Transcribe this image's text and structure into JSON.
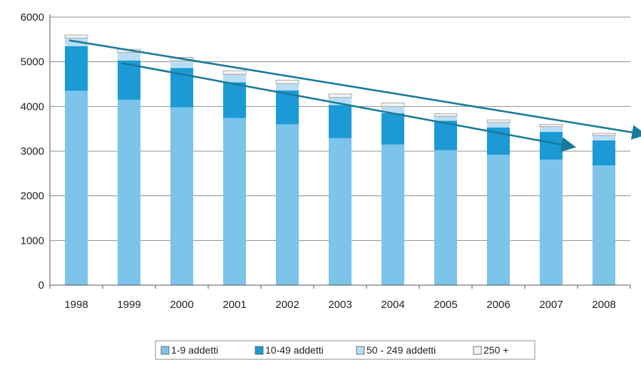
{
  "chart_data": {
    "type": "bar",
    "stacked": true,
    "categories": [
      "1998",
      "1999",
      "2000",
      "2001",
      "2002",
      "2003",
      "2004",
      "2005",
      "2006",
      "2007",
      "2008"
    ],
    "series": [
      {
        "name": "1-9 addetti",
        "color": "#7cc4ea",
        "values": [
          4350,
          4150,
          3980,
          3740,
          3600,
          3290,
          3150,
          3020,
          2920,
          2810,
          2680
        ]
      },
      {
        "name": "10-49 addetti",
        "color": "#1b9ad6",
        "values": [
          1000,
          880,
          880,
          800,
          760,
          740,
          700,
          660,
          610,
          620,
          560
        ]
      },
      {
        "name": "50 - 249 addetti",
        "color": "#b9def4",
        "values": [
          180,
          180,
          160,
          180,
          150,
          170,
          150,
          100,
          110,
          120,
          110
        ]
      },
      {
        "name": "250 +",
        "color": "#f2f2f2",
        "values": [
          70,
          70,
          80,
          80,
          80,
          80,
          80,
          60,
          60,
          50,
          50
        ]
      }
    ],
    "y_ticks": [
      "0",
      "1000",
      "2000",
      "3000",
      "4000",
      "5000",
      "6000"
    ],
    "ylim": [
      0,
      6000
    ],
    "grid": true,
    "legend_position": "bottom",
    "trend_arrows": [
      {
        "from": {
          "x": "1998",
          "y": 5480
        },
        "to": {
          "x": "2008",
          "y": 3380
        },
        "color": "#1a7a9a"
      },
      {
        "from": {
          "x": "1999",
          "y": 4970
        },
        "to": {
          "x": "2007",
          "y": 3100
        },
        "color": "#1a7a9a"
      }
    ]
  }
}
